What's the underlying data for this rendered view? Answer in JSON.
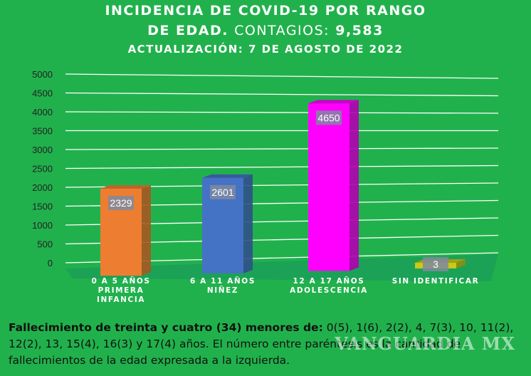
{
  "header": {
    "title_line1": "INCIDENCIA DE COVID-19 POR RANGO",
    "title_line2_bold": "DE EDAD.",
    "title_line2_light": "CONTAGIOS:",
    "title_line2_total": "9,583",
    "subtitle": "ACTUALIZACIÓN: 7 DE AGOSTO DE 2022"
  },
  "chart_data": {
    "type": "bar",
    "categories": [
      [
        "0 A 5 AÑOS",
        "PRIMERA",
        "INFANCIA"
      ],
      [
        "6 A 11 AÑOS",
        "NIÑEZ"
      ],
      [
        "12 A 17 AÑOS",
        "ADOLESCENCIA"
      ],
      [
        "SIN IDENTIFICAR"
      ]
    ],
    "values": [
      2329,
      2601,
      4650,
      3
    ],
    "colors": [
      "#ed7d31",
      "#4472c4",
      "#ff00ff",
      "#c9c918"
    ],
    "ylim": [
      0,
      5000
    ],
    "yticks": [
      0,
      500,
      1000,
      1500,
      2000,
      2500,
      3000,
      3500,
      4000,
      4500,
      5000
    ],
    "grid": true,
    "style": "3d-column"
  },
  "footer": {
    "bold_text": "Fallecimiento de treinta y cuatro (34) menores de:",
    "text": "0(5), 1(6), 2(2), 4, 7(3), 10, 11(2), 12(2), 13, 15(4), 16(3) y 17(4) años. El número entre paréntesis es la cantidad de fallecimientos de la edad expresada a la izquierda."
  },
  "watermark": "VANGUARDIA MX"
}
